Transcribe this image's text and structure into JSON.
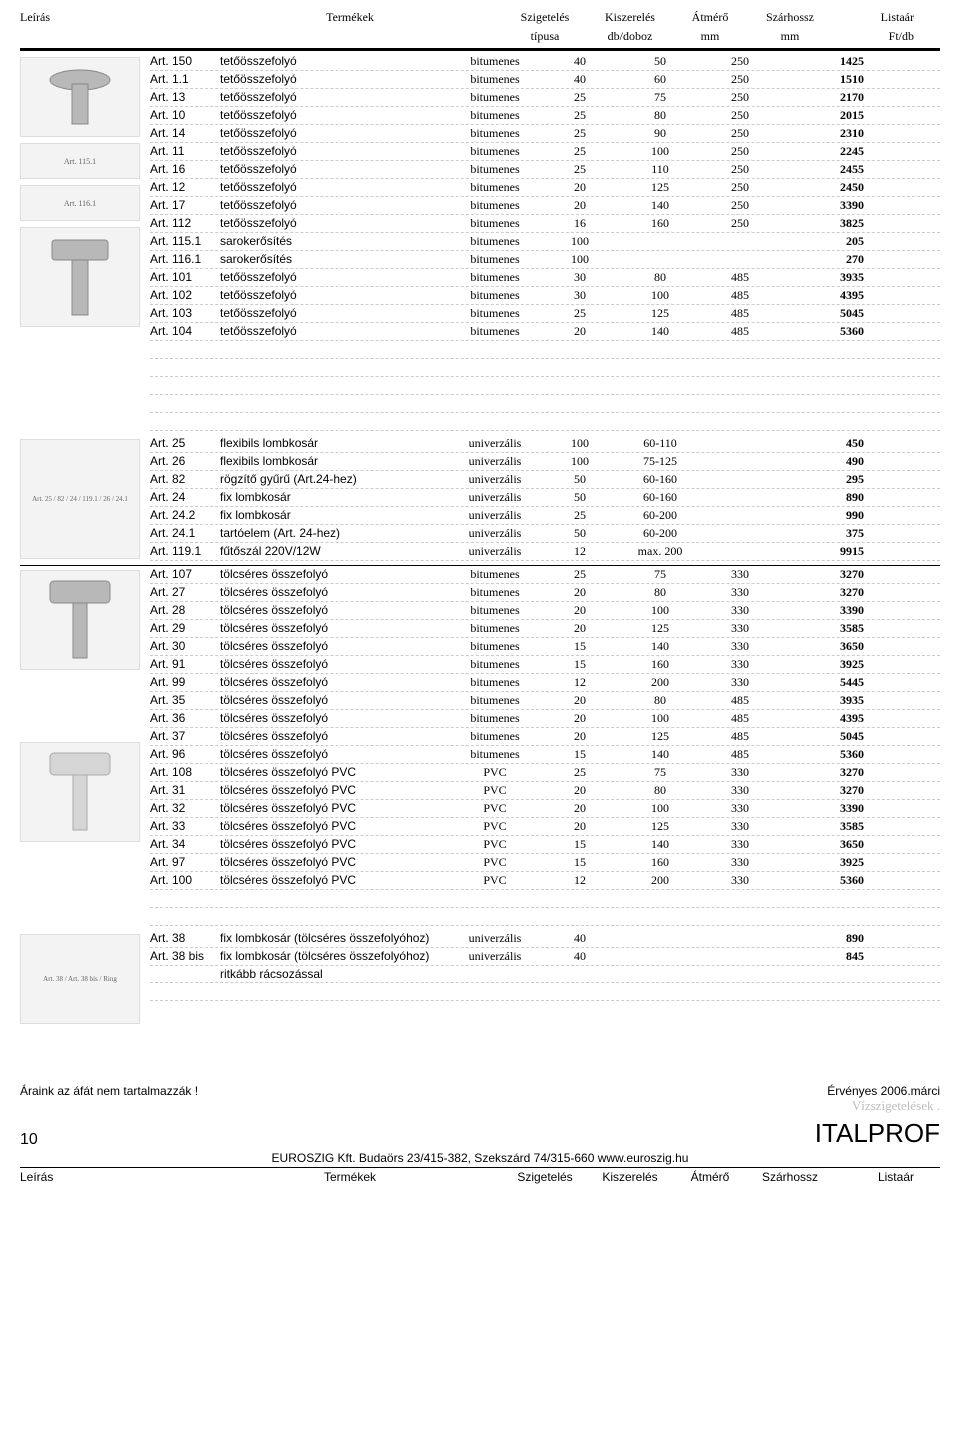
{
  "headers": {
    "c1": "Leírás",
    "c2": "Termékek",
    "c3": "Szigetelés",
    "c4": "Kiszerelés",
    "c5": "Átmérő",
    "c6": "Szárhossz",
    "c7": "Listaár",
    "s3": "típusa",
    "s4": "db/doboz",
    "s5": "mm",
    "s6": "mm",
    "s7": "Ft/db"
  },
  "section1": {
    "rows": [
      {
        "art": "Art. 150",
        "name": "tetőösszefolyó",
        "szig": "bitumenes",
        "kisz": "40",
        "atm": "50",
        "szh": "250",
        "ar": "1425"
      },
      {
        "art": "Art. 1.1",
        "name": "tetőösszefolyó",
        "szig": "bitumenes",
        "kisz": "40",
        "atm": "60",
        "szh": "250",
        "ar": "1510"
      },
      {
        "art": "Art. 13",
        "name": "tetőösszefolyó",
        "szig": "bitumenes",
        "kisz": "25",
        "atm": "75",
        "szh": "250",
        "ar": "2170"
      },
      {
        "art": "Art. 10",
        "name": "tetőösszefolyó",
        "szig": "bitumenes",
        "kisz": "25",
        "atm": "80",
        "szh": "250",
        "ar": "2015"
      },
      {
        "art": "Art. 14",
        "name": "tetőösszefolyó",
        "szig": "bitumenes",
        "kisz": "25",
        "atm": "90",
        "szh": "250",
        "ar": "2310"
      },
      {
        "art": "Art. 11",
        "name": "tetőösszefolyó",
        "szig": "bitumenes",
        "kisz": "25",
        "atm": "100",
        "szh": "250",
        "ar": "2245"
      },
      {
        "art": "Art. 16",
        "name": "tetőösszefolyó",
        "szig": "bitumenes",
        "kisz": "25",
        "atm": "110",
        "szh": "250",
        "ar": "2455"
      },
      {
        "art": "Art. 12",
        "name": "tetőösszefolyó",
        "szig": "bitumenes",
        "kisz": "20",
        "atm": "125",
        "szh": "250",
        "ar": "2450"
      },
      {
        "art": "Art. 17",
        "name": "tetőösszefolyó",
        "szig": "bitumenes",
        "kisz": "20",
        "atm": "140",
        "szh": "250",
        "ar": "3390"
      },
      {
        "art": "Art. 112",
        "name": "tetőösszefolyó",
        "szig": "bitumenes",
        "kisz": "16",
        "atm": "160",
        "szh": "250",
        "ar": "3825"
      },
      {
        "art": "Art. 115.1",
        "name": "sarokerősítés",
        "szig": "bitumenes",
        "kisz": "100",
        "atm": "",
        "szh": "",
        "ar": "205"
      },
      {
        "art": "Art. 116.1",
        "name": "sarokerősítés",
        "szig": "bitumenes",
        "kisz": "100",
        "atm": "",
        "szh": "",
        "ar": "270"
      },
      {
        "art": "Art. 101",
        "name": "tetőösszefolyó",
        "szig": "bitumenes",
        "kisz": "30",
        "atm": "80",
        "szh": "485",
        "ar": "3935"
      },
      {
        "art": "Art. 102",
        "name": "tetőösszefolyó",
        "szig": "bitumenes",
        "kisz": "30",
        "atm": "100",
        "szh": "485",
        "ar": "4395"
      },
      {
        "art": "Art. 103",
        "name": "tetőösszefolyó",
        "szig": "bitumenes",
        "kisz": "25",
        "atm": "125",
        "szh": "485",
        "ar": "5045"
      },
      {
        "art": "Art. 104",
        "name": "tetőösszefolyó",
        "szig": "bitumenes",
        "kisz": "20",
        "atm": "140",
        "szh": "485",
        "ar": "5360"
      }
    ]
  },
  "section2": {
    "rows": [
      {
        "art": "Art. 25",
        "name": "flexibils lombkosár",
        "szig": "univerzális",
        "kisz": "100",
        "atm": "60-110",
        "szh": "",
        "ar": "450"
      },
      {
        "art": "Art. 26",
        "name": "flexibils lombkosár",
        "szig": "univerzális",
        "kisz": "100",
        "atm": "75-125",
        "szh": "",
        "ar": "490"
      },
      {
        "art": "Art. 82",
        "name": "rögzítő gyűrű (Art.24-hez)",
        "szig": "univerzális",
        "kisz": "50",
        "atm": "60-160",
        "szh": "",
        "ar": "295"
      },
      {
        "art": "Art. 24",
        "name": "fix lombkosár",
        "szig": "univerzális",
        "kisz": "50",
        "atm": "60-160",
        "szh": "",
        "ar": "890"
      },
      {
        "art": "Art. 24.2",
        "name": "fix lombkosár",
        "szig": "univerzális",
        "kisz": "25",
        "atm": "60-200",
        "szh": "",
        "ar": "990"
      },
      {
        "art": "Art. 24.1",
        "name": "tartóelem (Art. 24-hez)",
        "szig": "univerzális",
        "kisz": "50",
        "atm": "60-200",
        "szh": "",
        "ar": "375"
      },
      {
        "art": "Art. 119.1",
        "name": "fűtőszál 220V/12W",
        "szig": "univerzális",
        "kisz": "12",
        "atm": "max. 200",
        "szh": "",
        "ar": "9915"
      }
    ]
  },
  "section3": {
    "rows": [
      {
        "art": "Art. 107",
        "name": "tölcséres összefolyó",
        "szig": "bitumenes",
        "kisz": "25",
        "atm": "75",
        "szh": "330",
        "ar": "3270"
      },
      {
        "art": "Art. 27",
        "name": "tölcséres összefolyó",
        "szig": "bitumenes",
        "kisz": "20",
        "atm": "80",
        "szh": "330",
        "ar": "3270"
      },
      {
        "art": "Art. 28",
        "name": "tölcséres összefolyó",
        "szig": "bitumenes",
        "kisz": "20",
        "atm": "100",
        "szh": "330",
        "ar": "3390"
      },
      {
        "art": "Art. 29",
        "name": "tölcséres összefolyó",
        "szig": "bitumenes",
        "kisz": "20",
        "atm": "125",
        "szh": "330",
        "ar": "3585"
      },
      {
        "art": "Art. 30",
        "name": "tölcséres összefolyó",
        "szig": "bitumenes",
        "kisz": "15",
        "atm": "140",
        "szh": "330",
        "ar": "3650"
      },
      {
        "art": "Art. 91",
        "name": "tölcséres összefolyó",
        "szig": "bitumenes",
        "kisz": "15",
        "atm": "160",
        "szh": "330",
        "ar": "3925"
      },
      {
        "art": "Art. 99",
        "name": "tölcséres összefolyó",
        "szig": "bitumenes",
        "kisz": "12",
        "atm": "200",
        "szh": "330",
        "ar": "5445"
      },
      {
        "art": "Art. 35",
        "name": "tölcséres összefolyó",
        "szig": "bitumenes",
        "kisz": "20",
        "atm": "80",
        "szh": "485",
        "ar": "3935"
      },
      {
        "art": "Art. 36",
        "name": "tölcséres összefolyó",
        "szig": "bitumenes",
        "kisz": "20",
        "atm": "100",
        "szh": "485",
        "ar": "4395"
      },
      {
        "art": "Art. 37",
        "name": "tölcséres összefolyó",
        "szig": "bitumenes",
        "kisz": "20",
        "atm": "125",
        "szh": "485",
        "ar": "5045"
      },
      {
        "art": "Art. 96",
        "name": "tölcséres összefolyó",
        "szig": "bitumenes",
        "kisz": "15",
        "atm": "140",
        "szh": "485",
        "ar": "5360"
      },
      {
        "art": "Art. 108",
        "name": "tölcséres összefolyó PVC",
        "szig": "PVC",
        "kisz": "25",
        "atm": "75",
        "szh": "330",
        "ar": "3270"
      },
      {
        "art": "Art. 31",
        "name": "tölcséres összefolyó PVC",
        "szig": "PVC",
        "kisz": "20",
        "atm": "80",
        "szh": "330",
        "ar": "3270"
      },
      {
        "art": "Art. 32",
        "name": "tölcséres összefolyó PVC",
        "szig": "PVC",
        "kisz": "20",
        "atm": "100",
        "szh": "330",
        "ar": "3390"
      },
      {
        "art": "Art. 33",
        "name": "tölcséres összefolyó PVC",
        "szig": "PVC",
        "kisz": "20",
        "atm": "125",
        "szh": "330",
        "ar": "3585"
      },
      {
        "art": "Art. 34",
        "name": "tölcséres összefolyó PVC",
        "szig": "PVC",
        "kisz": "15",
        "atm": "140",
        "szh": "330",
        "ar": "3650"
      },
      {
        "art": "Art. 97",
        "name": "tölcséres összefolyó PVC",
        "szig": "PVC",
        "kisz": "15",
        "atm": "160",
        "szh": "330",
        "ar": "3925"
      },
      {
        "art": "Art. 100",
        "name": "tölcséres összefolyó PVC",
        "szig": "PVC",
        "kisz": "12",
        "atm": "200",
        "szh": "330",
        "ar": "5360"
      }
    ]
  },
  "section4": {
    "rows": [
      {
        "art": "Art. 38",
        "name": "fix lombkosár (tölcséres összefolyóhoz)",
        "szig": "univerzális",
        "kisz": "40",
        "atm": "",
        "szh": "",
        "ar": "890"
      },
      {
        "art": "Art. 38 bis",
        "name": "fix lombkosár (tölcséres összefolyóhoz)",
        "szig": "univerzális",
        "kisz": "40",
        "atm": "",
        "szh": "",
        "ar": "845"
      }
    ],
    "note": "ritkább rácsozással"
  },
  "footer": {
    "left": "Áraink az áfát nem tartalmazzák !",
    "right": "Érvényes 2006.márci",
    "watermark": "Vízszigetelések .",
    "page": "10",
    "brand": "ITALPROF",
    "company": "EUROSZIG Kft.  Budaörs 23/415-382, Szekszárd 74/315-660  www.euroszig.hu",
    "c1": "Leírás",
    "c2": "Termékek",
    "c3": "Szigetelés",
    "c4": "Kiszerelés",
    "c5": "Átmérő",
    "c6": "Szárhossz",
    "c7": "Listaár"
  },
  "imglabels": {
    "s1a": "Art. 115.1",
    "s1b": "Art. 116.1",
    "s2": "Art. 25 / 82 / 24 / 119.1 / 26 / 24.1",
    "s4": "Art. 38 / Art. 38 bis / Ring"
  }
}
